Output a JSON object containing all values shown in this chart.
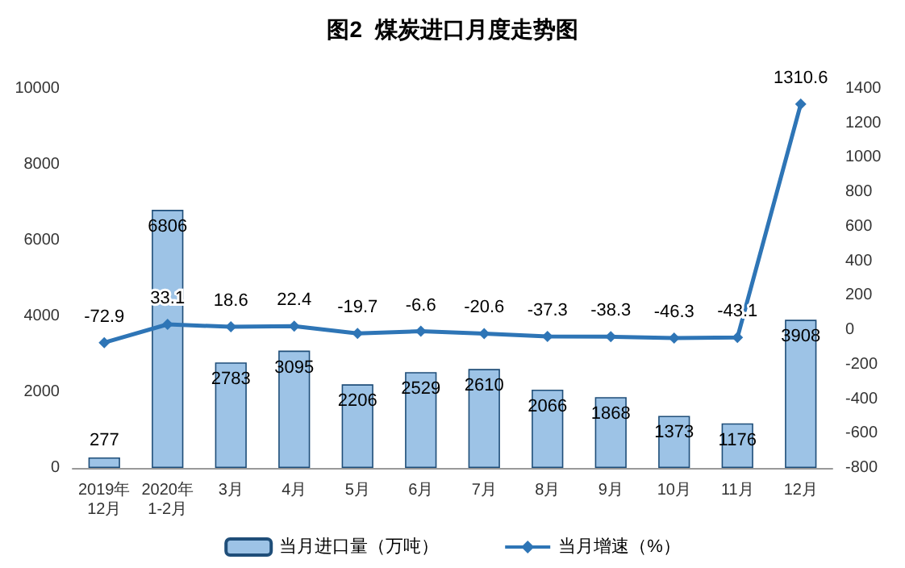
{
  "chart_data": {
    "type": "bar",
    "title": "图2  煤炭进口月度走势图",
    "categories": [
      "2019年\n12月",
      "2020年\n1-2月",
      "3月",
      "4月",
      "5月",
      "6月",
      "7月",
      "8月",
      "9月",
      "10月",
      "11月",
      "12月"
    ],
    "series": [
      {
        "name": "当月进口量（万吨）",
        "color": "#9dc3e6",
        "values": [
          277,
          6806,
          2783,
          3095,
          2206,
          2529,
          2610,
          2066,
          1868,
          1373,
          1176,
          3908
        ]
      },
      {
        "name": "当月增速（%）",
        "type": "line",
        "axis": "y2",
        "color": "#2e75b6",
        "values": [
          -72.9,
          33.1,
          18.6,
          22.4,
          -19.7,
          -6.6,
          -20.6,
          -37.3,
          -38.3,
          -46.3,
          -43.1,
          1310.6
        ]
      }
    ],
    "ylim": [
      0,
      10000
    ],
    "yticks": [
      0,
      2000,
      4000,
      6000,
      8000,
      10000
    ],
    "y2lim": [
      -800,
      1400
    ],
    "y2ticks": [
      -800,
      -600,
      -400,
      -200,
      0,
      200,
      400,
      600,
      800,
      1000,
      1200,
      1400
    ],
    "data_labels": true,
    "marker": "diamond",
    "grid": false,
    "legend": "bottom"
  }
}
